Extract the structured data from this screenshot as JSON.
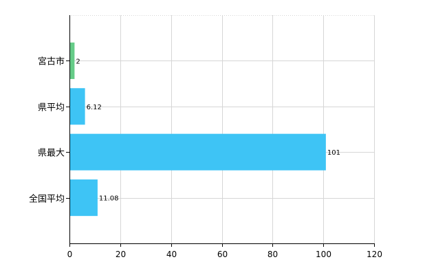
{
  "chart_data": {
    "type": "bar",
    "orientation": "horizontal",
    "categories": [
      "宮古市",
      "県平均",
      "県最大",
      "全国平均"
    ],
    "values": [
      2,
      6.12,
      101,
      11.08
    ],
    "data_labels": [
      "2",
      "6.12",
      "101",
      "11.08"
    ],
    "bar_colors": [
      "#66cc88",
      "#3ec4f5",
      "#3ec4f5",
      "#3ec4f5"
    ],
    "xlim": [
      0,
      120
    ],
    "x_ticks": [
      0,
      20,
      40,
      60,
      80,
      100,
      120
    ],
    "grid": true,
    "title": "",
    "xlabel": "",
    "ylabel": ""
  }
}
